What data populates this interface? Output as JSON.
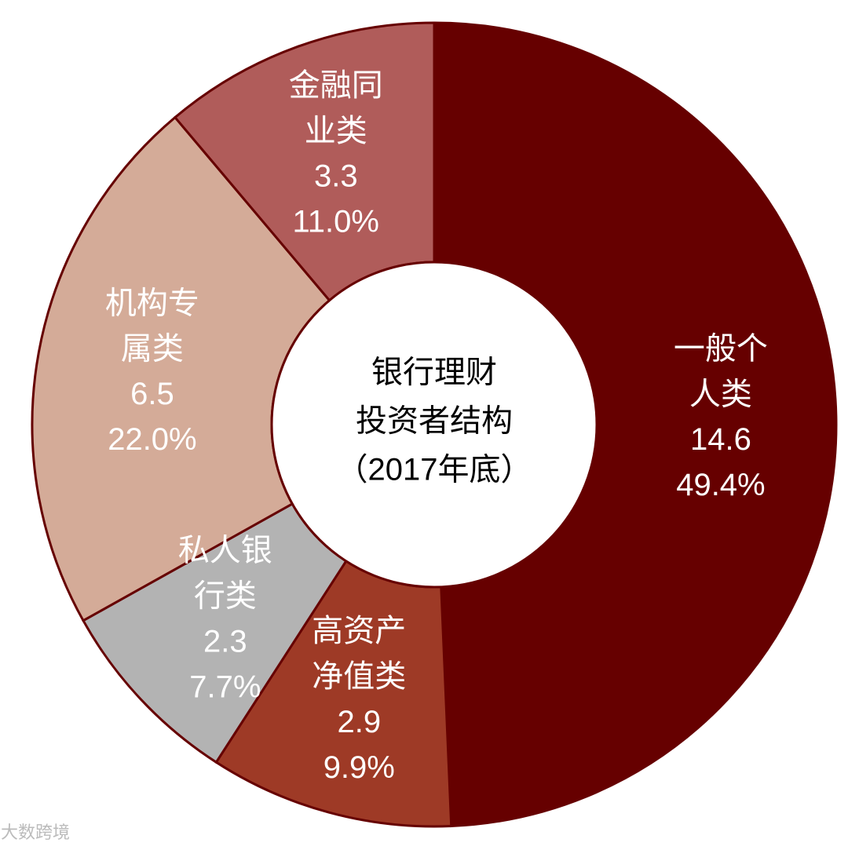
{
  "chart_data": {
    "type": "donut",
    "title": [
      "银行理财",
      "投资者结构",
      "（2017年底）"
    ],
    "categories": [
      "一般个人类",
      "高资产净值类",
      "私人银行类",
      "机构专属类",
      "金融同业类"
    ],
    "values": [
      14.6,
      2.9,
      2.3,
      6.5,
      3.3
    ],
    "percents": [
      49.4,
      9.9,
      7.7,
      22.0,
      11.0
    ],
    "percent_labels": [
      "49.4%",
      "9.9%",
      "7.7%",
      "22.0%",
      "11.0%"
    ],
    "colors": [
      "#660000",
      "#9e3a26",
      "#b3b3b3",
      "#d4ab98",
      "#b05c5a"
    ],
    "watermark": "大数跨境"
  }
}
